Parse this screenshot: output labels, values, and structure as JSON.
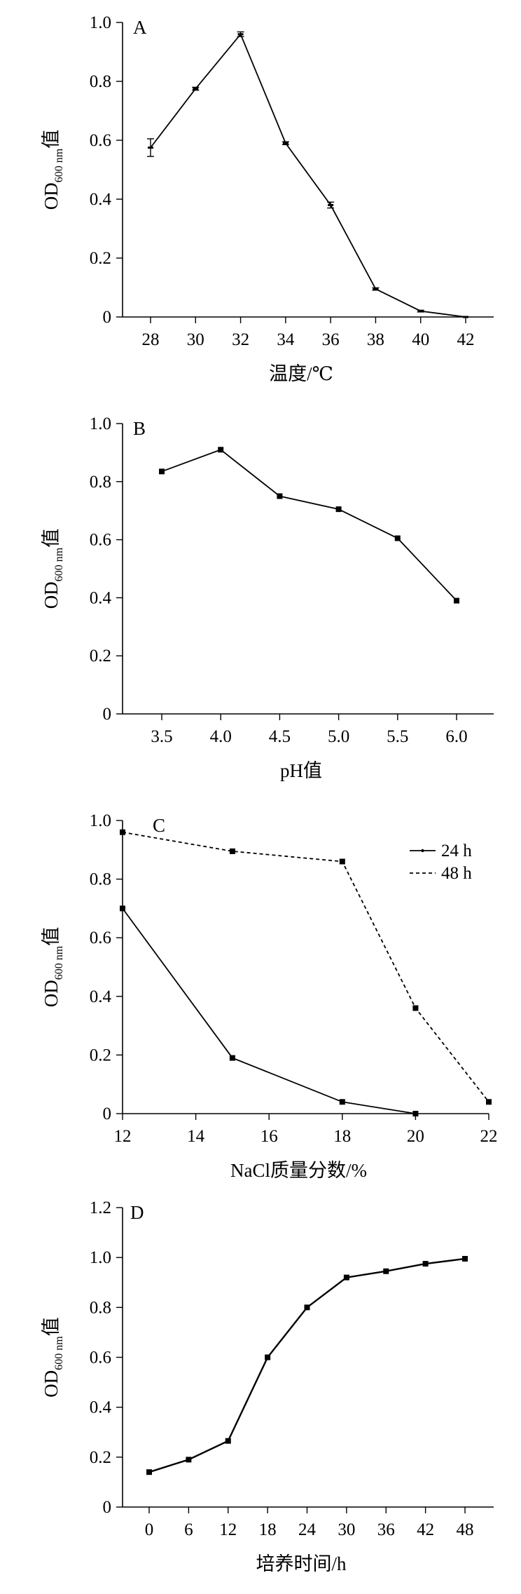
{
  "chart_data": [
    {
      "type": "line",
      "panel_label": "A",
      "ylabel": {
        "main": "OD",
        "sub": "600 nm",
        "suffix": "值"
      },
      "xlabel": "温度/℃",
      "x": [
        28,
        30,
        32,
        34,
        36,
        38,
        40,
        42
      ],
      "x_ticks": [
        "28",
        "30",
        "32",
        "34",
        "36",
        "38",
        "40",
        "42"
      ],
      "ylim": [
        0,
        1.0
      ],
      "y_ticks": [
        "0",
        "0.2",
        "0.4",
        "0.6",
        "0.8",
        "1.0"
      ],
      "series": [
        {
          "values": [
            0.575,
            0.775,
            0.96,
            0.59,
            0.38,
            0.095,
            0.02,
            0.0
          ],
          "errors": [
            0.03,
            0.005,
            0.008,
            0.005,
            0.01,
            0.004,
            0.003,
            0.0
          ],
          "style": "solid",
          "marker": "dash"
        }
      ],
      "grid": false
    },
    {
      "type": "line",
      "panel_label": "B",
      "ylabel": {
        "main": "OD",
        "sub": "600 nm",
        "suffix": "值"
      },
      "xlabel": "pH值",
      "x": [
        3.5,
        4.0,
        4.5,
        5.0,
        5.5,
        6.0
      ],
      "x_ticks": [
        "3.5",
        "4.0",
        "4.5",
        "5.0",
        "5.5",
        "6.0"
      ],
      "ylim": [
        0,
        1.0
      ],
      "y_ticks": [
        "0",
        "0.2",
        "0.4",
        "0.6",
        "0.8",
        "1.0"
      ],
      "series": [
        {
          "values": [
            0.835,
            0.91,
            0.75,
            0.705,
            0.605,
            0.39
          ],
          "style": "solid",
          "marker": "square"
        }
      ],
      "grid": false
    },
    {
      "type": "line",
      "panel_label": "C",
      "ylabel": {
        "main": "OD",
        "sub": "600 nm",
        "suffix": "值"
      },
      "xlabel": "NaCl质量分数/%",
      "x_ticks": [
        "12",
        "14",
        "16",
        "18",
        "20",
        "22"
      ],
      "xlim": [
        12,
        22
      ],
      "ylim": [
        0,
        1.0
      ],
      "y_ticks": [
        "0",
        "0.2",
        "0.4",
        "0.6",
        "0.8",
        "1.0"
      ],
      "legend_position": "top-right",
      "series": [
        {
          "name": "24 h",
          "x": [
            12,
            15,
            18,
            20
          ],
          "values": [
            0.7,
            0.19,
            0.04,
            0.0
          ],
          "style": "solid",
          "marker": "square"
        },
        {
          "name": "48 h",
          "x": [
            12,
            15,
            18,
            20,
            22
          ],
          "values": [
            0.96,
            0.895,
            0.86,
            0.36,
            0.04
          ],
          "style": "dotted",
          "marker": "square"
        }
      ],
      "grid": false
    },
    {
      "type": "line",
      "panel_label": "D",
      "ylabel": {
        "main": "OD",
        "sub": "600 nm",
        "suffix": "值"
      },
      "xlabel": "培养时间/h",
      "x": [
        0,
        6,
        12,
        18,
        24,
        30,
        36,
        42,
        48
      ],
      "x_ticks": [
        "0",
        "6",
        "12",
        "18",
        "24",
        "30",
        "36",
        "42",
        "48"
      ],
      "ylim": [
        0,
        1.2
      ],
      "y_ticks": [
        "0",
        "0.2",
        "0.4",
        "0.6",
        "0.8",
        "1.0",
        "1.2"
      ],
      "series": [
        {
          "values": [
            0.14,
            0.19,
            0.265,
            0.6,
            0.8,
            0.92,
            0.945,
            0.975,
            0.995
          ],
          "style": "solid",
          "marker": "square"
        }
      ],
      "grid": false
    }
  ]
}
